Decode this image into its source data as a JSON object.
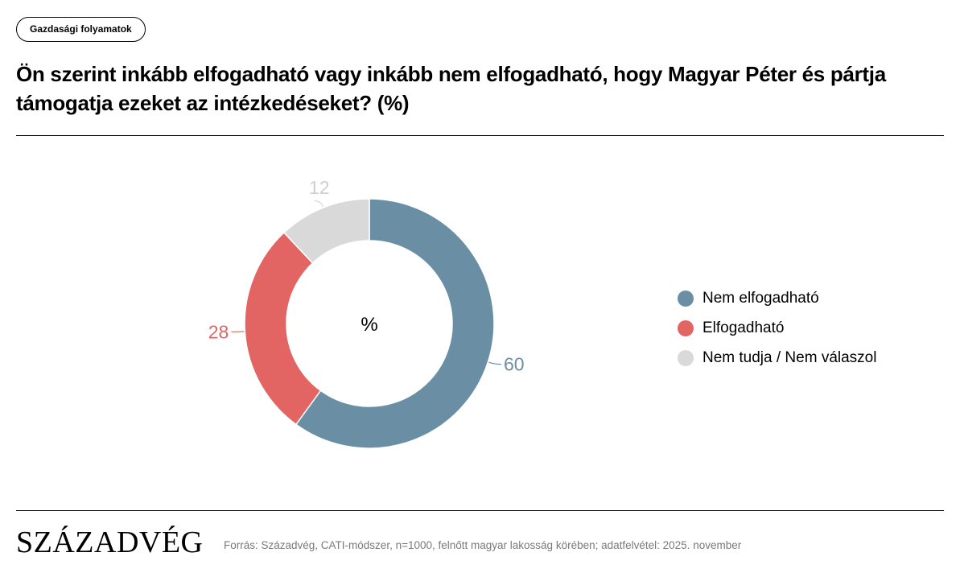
{
  "tag": "Gazdasági folyamatok",
  "title": "Ön szerint inkább elfogadható vagy inkább nem elfogadható, hogy Magyar Péter és pártja támogatja ezeket az intézkedéseket? (%)",
  "brand": "SZÁZADVÉG",
  "source": "Forrás: Századvég, CATI-módszer, n=1000, felnőtt magyar lakosság körében; adatfelvétel: 2025. november",
  "chart_data": {
    "type": "pie",
    "title": "Ön szerint inkább elfogadható vagy inkább nem elfogadható, hogy Magyar Péter és pártja támogatja ezeket az intézkedéseket? (%)",
    "center_label": "%",
    "slices": [
      {
        "label": "Nem elfogadható",
        "value": 60,
        "color": "#6a8fa5"
      },
      {
        "label": "Elfogadható",
        "value": 28,
        "color": "#e26563"
      },
      {
        "label": "Nem tudja / Nem válaszol",
        "value": 12,
        "color": "#d9d9d9"
      }
    ],
    "legend_position": "right",
    "donut": true
  }
}
